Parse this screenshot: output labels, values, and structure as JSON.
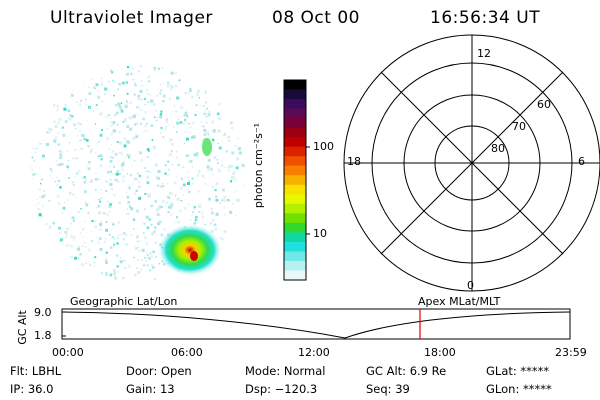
{
  "header": {
    "title": "Ultraviolet Imager",
    "date": "08 Oct 00",
    "time": "16:56:34 UT"
  },
  "colorbar": {
    "label": "photon cm⁻²s⁻¹",
    "ticks": [
      "100",
      "10"
    ],
    "colors": [
      "#000000",
      "#1a0a3a",
      "#3b0b5e",
      "#5c0a55",
      "#7a0038",
      "#9c0010",
      "#bf0000",
      "#dd2200",
      "#f05000",
      "#f88000",
      "#f8b000",
      "#f8e000",
      "#e8f800",
      "#b0f000",
      "#70e000",
      "#30d830",
      "#10d8a0",
      "#20e0e0",
      "#70e8e8",
      "#b8f0f0",
      "#e8f8f8"
    ]
  },
  "polar_grid": {
    "mlt_labels": [
      "12",
      "18",
      "6",
      "0"
    ],
    "lat_labels": [
      "60",
      "70",
      "80"
    ]
  },
  "timeline": {
    "left_label": "Geographic Lat/Lon",
    "right_label": "Apex MLat/MLT",
    "axis_title": "GC Alt",
    "y_ticks": [
      "9.0",
      "1.8"
    ],
    "x_ticks": [
      "00:00",
      "06:00",
      "12:00",
      "18:00",
      "23:59"
    ],
    "marker_color": "#e00000"
  },
  "status": {
    "flt": "Flt: LBHL",
    "ip": "IP: 36.0",
    "door": "Door: Open",
    "gain": "Gain: 13",
    "mode": "Mode: Normal",
    "dsp": "Dsp: −120.3",
    "gcalt": "GC Alt: 6.9 Re",
    "seq": "Seq: 39",
    "glat": "GLat: *****",
    "glon": "GLon: *****"
  }
}
